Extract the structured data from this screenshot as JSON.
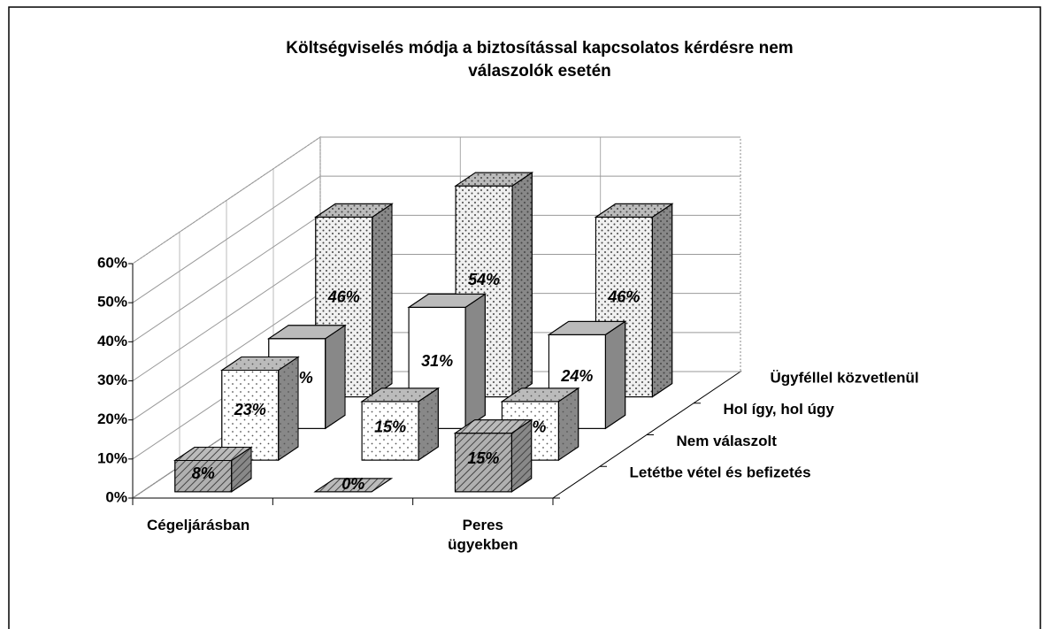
{
  "chart_data": {
    "type": "bar3d",
    "title": "Költségviselés módja a biztosítással kapcsolatos kérdésre nem válaszolók esetén",
    "categories": [
      "Cégeljárásban",
      null,
      "Peres ügyekben"
    ],
    "series": [
      {
        "name": "Letétbe vétel és befizetés",
        "color": "#b0b0b0",
        "values": [
          8,
          0,
          15
        ],
        "value_labels": [
          "8%",
          "0%",
          "15%"
        ]
      },
      {
        "name": "Nem válaszolt",
        "color": "#ffffff",
        "values": [
          23,
          15,
          15
        ],
        "value_labels": [
          "23%",
          "15%",
          "15%"
        ]
      },
      {
        "name": "Hol így, hol úgy",
        "color": "#ffffff",
        "values": [
          23,
          31,
          24
        ],
        "value_labels": [
          "23%",
          "31%",
          "24%"
        ]
      },
      {
        "name": "Ügyféllel közvetlenül",
        "color": "#f0f0f0",
        "values": [
          46,
          54,
          46
        ],
        "value_labels": [
          "46%",
          "54%",
          "46%"
        ]
      }
    ],
    "ylim": [
      0,
      60
    ],
    "yticks": [
      {
        "value": 0,
        "label": "0%"
      },
      {
        "value": 10,
        "label": "10%"
      },
      {
        "value": 20,
        "label": "20%"
      },
      {
        "value": 30,
        "label": "30%"
      },
      {
        "value": 40,
        "label": "40%"
      },
      {
        "value": 50,
        "label": "50%"
      },
      {
        "value": 60,
        "label": "60%"
      }
    ],
    "grid": true
  }
}
